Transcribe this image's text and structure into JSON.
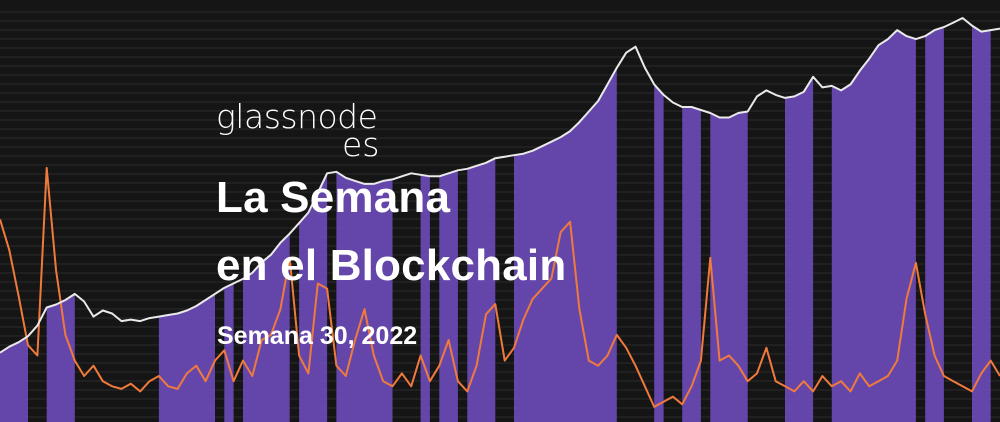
{
  "brand": {
    "name": "glassnode",
    "suffix": "es"
  },
  "headline": {
    "line1": "La Semana",
    "line2": "en el Blockchain"
  },
  "edition": "Semana 30, 2022",
  "colors": {
    "background": "#151515",
    "price_line": "#e9e9e9",
    "indicator_line": "#f07a3c",
    "highlight_band": "#6b4bb8",
    "text": "#ffffff"
  },
  "chart_data": {
    "type": "line",
    "series": [
      {
        "values": [
          0.34,
          0.38,
          0.41,
          0.45,
          0.52,
          0.64,
          0.66,
          0.69,
          0.73,
          0.68,
          0.58,
          0.62,
          0.6,
          0.55,
          0.56,
          0.55,
          0.57,
          0.58,
          0.59,
          0.6,
          0.62,
          0.65,
          0.69,
          0.73,
          0.77,
          0.8,
          0.83,
          0.87,
          0.94,
          0.99,
          1.07,
          1.13,
          1.2,
          1.27,
          1.4,
          1.53,
          1.54,
          1.5,
          1.48,
          1.46,
          1.46,
          1.48,
          1.49,
          1.51,
          1.53,
          1.52,
          1.51,
          1.51,
          1.53,
          1.55,
          1.56,
          1.58,
          1.6,
          1.63,
          1.64,
          1.65,
          1.66,
          1.68,
          1.71,
          1.74,
          1.77,
          1.81,
          1.87,
          1.94,
          2.01,
          2.12,
          2.23,
          2.33,
          2.37,
          2.23,
          2.12,
          2.05,
          2.0,
          1.97,
          1.97,
          1.95,
          1.93,
          1.9,
          1.9,
          1.93,
          1.94,
          2.04,
          2.08,
          2.05,
          2.03,
          2.04,
          2.07,
          2.17,
          2.1,
          2.11,
          2.08,
          2.12,
          2.21,
          2.29,
          2.38,
          2.42,
          2.48,
          2.44,
          2.42,
          2.44,
          2.48,
          2.5,
          2.53,
          2.56,
          2.51,
          2.47,
          2.48,
          2.49
        ]
      },
      {
        "values": [
          0.75,
          0.63,
          0.45,
          0.26,
          0.22,
          0.95,
          0.55,
          0.3,
          0.2,
          0.14,
          0.18,
          0.12,
          0.1,
          0.09,
          0.11,
          0.08,
          0.12,
          0.14,
          0.1,
          0.09,
          0.15,
          0.18,
          0.12,
          0.2,
          0.24,
          0.12,
          0.2,
          0.14,
          0.28,
          0.3,
          0.4,
          0.6,
          0.22,
          0.15,
          0.5,
          0.48,
          0.18,
          0.14,
          0.28,
          0.4,
          0.22,
          0.12,
          0.1,
          0.15,
          0.1,
          0.22,
          0.12,
          0.18,
          0.28,
          0.12,
          0.08,
          0.18,
          0.38,
          0.42,
          0.2,
          0.25,
          0.36,
          0.44,
          0.48,
          0.52,
          0.7,
          0.74,
          0.4,
          0.2,
          0.18,
          0.22,
          0.3,
          0.25,
          0.18,
          0.1,
          0.02,
          0.04,
          0.06,
          0.03,
          0.1,
          0.2,
          0.6,
          0.2,
          0.22,
          0.18,
          0.12,
          0.15,
          0.25,
          0.12,
          0.1,
          0.08,
          0.12,
          0.08,
          0.14,
          0.1,
          0.12,
          0.08,
          0.15,
          0.1,
          0.12,
          0.14,
          0.2,
          0.44,
          0.58,
          0.38,
          0.22,
          0.14,
          0.12,
          0.1,
          0.08,
          0.15,
          0.2,
          0.14
        ]
      }
    ],
    "bands": [
      [
        0,
        2
      ],
      [
        5,
        7
      ],
      [
        17,
        22
      ],
      [
        24,
        24
      ],
      [
        26,
        30
      ],
      [
        32,
        34
      ],
      [
        36,
        41
      ],
      [
        45,
        45
      ],
      [
        47,
        48
      ],
      [
        50,
        52
      ],
      [
        55,
        65
      ],
      [
        70,
        70
      ],
      [
        73,
        74
      ],
      [
        76,
        79
      ],
      [
        84,
        86
      ],
      [
        89,
        97
      ],
      [
        99,
        100
      ],
      [
        104,
        105
      ]
    ]
  }
}
